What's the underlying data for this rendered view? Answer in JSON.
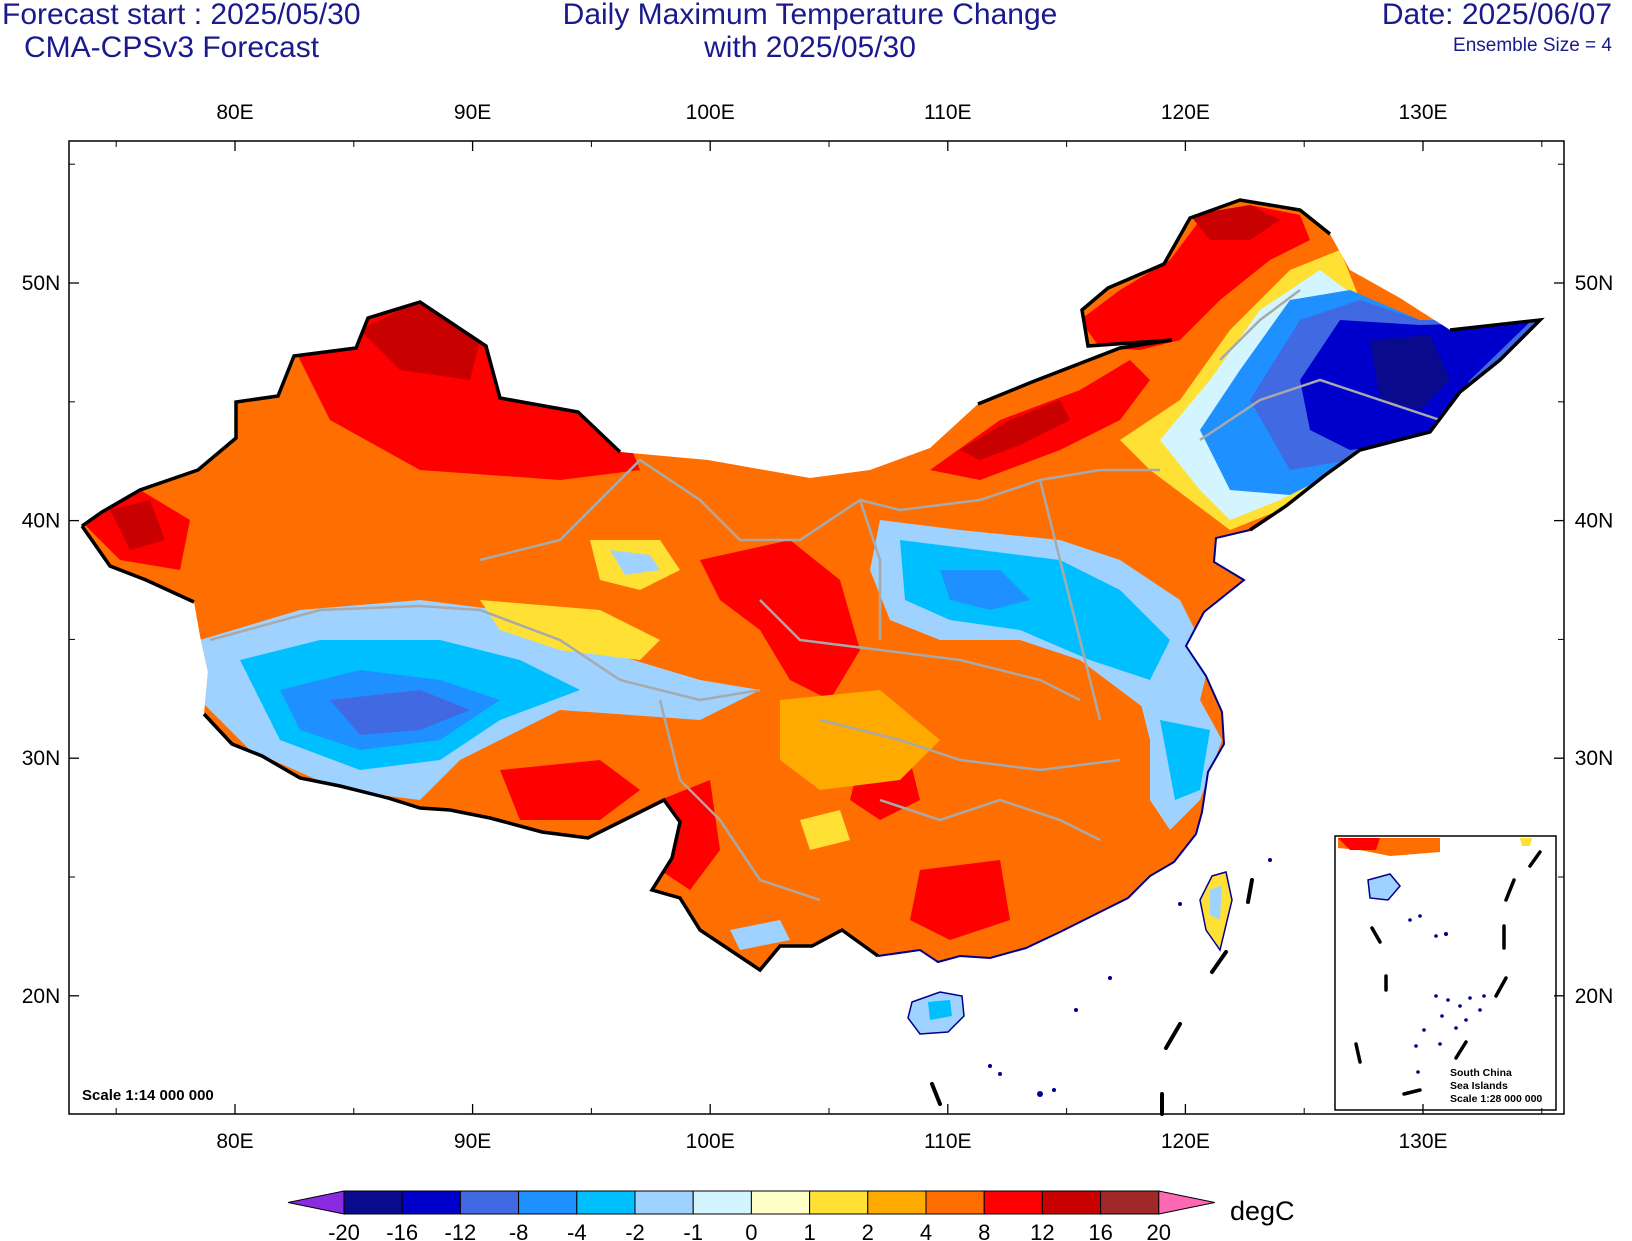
{
  "header": {
    "forecast_start": "Forecast start : 2025/05/30",
    "model": "CMA-CPSv3 Forecast",
    "title_line1": "Daily Maximum Temperature Change",
    "title_line2": "with 2025/05/30",
    "date": "Date: 2025/06/07",
    "ensemble": "Ensemble Size = 4"
  },
  "map": {
    "lon_labels": [
      "80E",
      "90E",
      "100E",
      "110E",
      "120E",
      "130E"
    ],
    "lat_labels": [
      "50N",
      "40N",
      "30N",
      "20N"
    ],
    "scale_main": "Scale 1:14 000 000",
    "inset": {
      "line1": "South China",
      "line2": "Sea Islands",
      "line3": "Scale 1:28 000 000"
    }
  },
  "colorbar": {
    "unit": "degC",
    "labels": [
      "-20",
      "-16",
      "-12",
      "-8",
      "-4",
      "-2",
      "-1",
      "0",
      "1",
      "2",
      "4",
      "8",
      "12",
      "16",
      "20"
    ],
    "colors": [
      "#0a0a8c",
      "#0000cd",
      "#4169e1",
      "#1e90ff",
      "#00bfff",
      "#a0d2ff",
      "#d2f5ff",
      "#ffffc8",
      "#ffe135",
      "#ffaa00",
      "#ff6e00",
      "#ff0000",
      "#c80000",
      "#a02828"
    ],
    "low_color": "#8a2be2",
    "high_color": "#ff69b4"
  }
}
